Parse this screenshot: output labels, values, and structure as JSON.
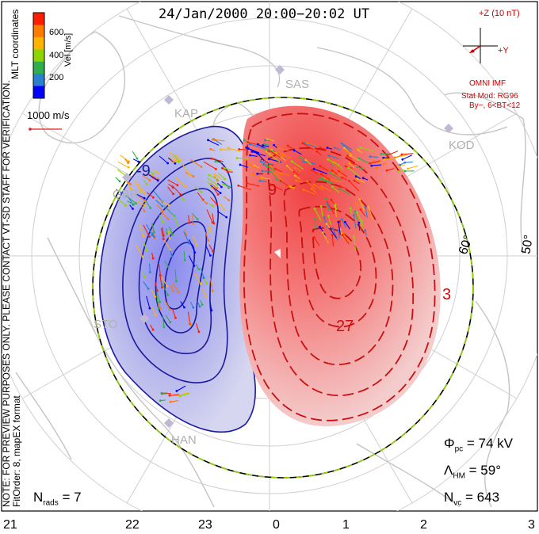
{
  "title": "24/Jan/2000  20:00−20:02  UT",
  "side_notes": {
    "line1": "NOTE: FOR PREVIEW PURPOSES ONLY. PLEASE CONTACT VT-SD STAFF FOR VERIFICATION.",
    "line2": "FitOrder: 8, mapEX format"
  },
  "coord_label": "MLT coordinates",
  "colorbar": {
    "unit": "Vel [m/s]",
    "ticks": [
      "600",
      "400",
      "200"
    ],
    "colors": [
      "#ff1e00",
      "#ff7a00",
      "#ffb400",
      "#8fd400",
      "#2fae4e",
      "#2a7fcf",
      "#0000ff"
    ]
  },
  "ref_vector": "1000 m/s",
  "imf": {
    "z_label": "+Z (10 nT)",
    "y_label": "+Y",
    "source": "OMNI IMF",
    "model1": "Stat Mod: RG96",
    "model2": "By−, 6<BT<12"
  },
  "stations": [
    "SAS",
    "KAP",
    "KOD",
    "GBR",
    "STO",
    "HAN"
  ],
  "contour_labels": [
    "-9",
    "9",
    "3",
    "27"
  ],
  "lat_labels": [
    "60°",
    "50°"
  ],
  "stats": {
    "phi_sym": "Φ",
    "phi_sub": "pc",
    "phi_value": "=  74 kV",
    "lam_sym": "Λ",
    "lam_sub": "HM",
    "lam_value": "=  59°",
    "nvc_sym": "N",
    "nvc_sub": "vc",
    "nvc_value": "=  643",
    "nrads_sym": "N",
    "nrads_sub": "rads",
    "nrads_value": "=  7"
  },
  "mlt_ticks": [
    "21",
    "22",
    "23",
    "0",
    "1",
    "2",
    "3"
  ]
}
